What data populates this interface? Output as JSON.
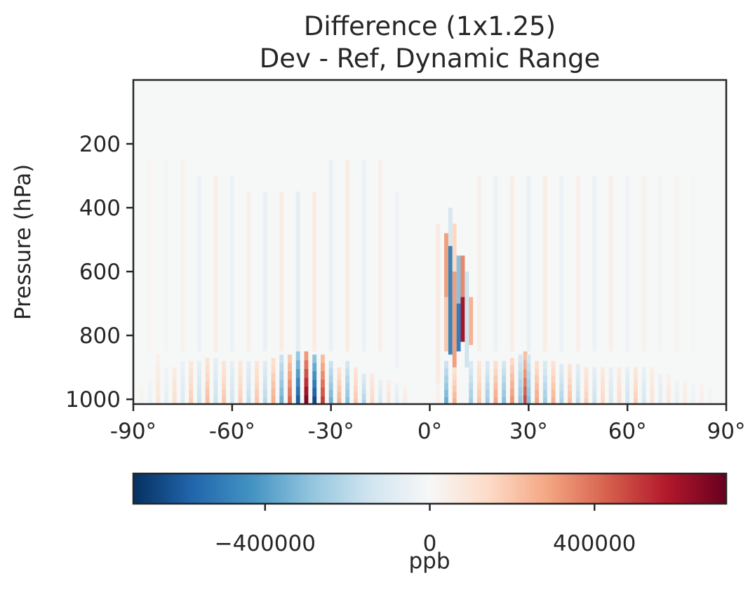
{
  "chart_data": {
    "type": "heatmap",
    "title": "Difference (1x1.25)",
    "subtitle": "Dev - Ref, Dynamic Range",
    "xlabel": "",
    "ylabel": "Pressure (hPa)",
    "xlim": [
      -90,
      90
    ],
    "ylim": [
      1015,
      0
    ],
    "x_ticks": [
      -90,
      -60,
      -30,
      0,
      30,
      60,
      90
    ],
    "x_tick_labels": [
      "-90°",
      "-60°",
      "-30°",
      "0°",
      "30°",
      "60°",
      "90°"
    ],
    "y_ticks": [
      200,
      400,
      600,
      800,
      1000
    ],
    "y_tick_labels": [
      "200",
      "400",
      "600",
      "800",
      "1000"
    ],
    "colormap": "RdBu_r",
    "colorbar": {
      "label": "ppb",
      "range": [
        -720000,
        720000
      ],
      "ticks": [
        -400000,
        0,
        400000
      ],
      "tick_labels": [
        "−400000",
        "0",
        "400000"
      ],
      "stops": [
        "#053061",
        "#2166ac",
        "#4393c3",
        "#92c5de",
        "#d1e5f0",
        "#f7f7f7",
        "#fddbc7",
        "#f4a582",
        "#d6604d",
        "#b2182b",
        "#67001f"
      ]
    },
    "column_width_deg": 1.25,
    "surface_columns": [
      {
        "lat": -87.5,
        "value": 30000,
        "top": 960
      },
      {
        "lat": -85.0,
        "value": -40000,
        "top": 940
      },
      {
        "lat": -82.5,
        "value": 80000,
        "top": 860
      },
      {
        "lat": -80.0,
        "value": -60000,
        "top": 900
      },
      {
        "lat": -77.5,
        "value": 120000,
        "top": 900
      },
      {
        "lat": -75.0,
        "value": -100000,
        "top": 880
      },
      {
        "lat": -72.5,
        "value": 180000,
        "top": 880
      },
      {
        "lat": -70.0,
        "value": -150000,
        "top": 880
      },
      {
        "lat": -67.5,
        "value": 220000,
        "top": 870
      },
      {
        "lat": -65.0,
        "value": -150000,
        "top": 870
      },
      {
        "lat": -62.5,
        "value": 200000,
        "top": 880
      },
      {
        "lat": -60.0,
        "value": -140000,
        "top": 880
      },
      {
        "lat": -57.5,
        "value": 180000,
        "top": 880
      },
      {
        "lat": -55.0,
        "value": -170000,
        "top": 880
      },
      {
        "lat": -52.5,
        "value": 200000,
        "top": 880
      },
      {
        "lat": -50.0,
        "value": -200000,
        "top": 880
      },
      {
        "lat": -47.5,
        "value": 260000,
        "top": 870
      },
      {
        "lat": -45.0,
        "value": -350000,
        "top": 860
      },
      {
        "lat": -42.5,
        "value": 420000,
        "top": 860
      },
      {
        "lat": -40.0,
        "value": -600000,
        "top": 850
      },
      {
        "lat": -37.5,
        "value": 680000,
        "top": 850
      },
      {
        "lat": -35.0,
        "value": -650000,
        "top": 860
      },
      {
        "lat": -32.5,
        "value": 500000,
        "top": 860
      },
      {
        "lat": -30.0,
        "value": -350000,
        "top": 880
      },
      {
        "lat": -27.5,
        "value": 250000,
        "top": 900
      },
      {
        "lat": -25.0,
        "value": -300000,
        "top": 880
      },
      {
        "lat": -22.5,
        "value": 200000,
        "top": 900
      },
      {
        "lat": -20.0,
        "value": -220000,
        "top": 920
      },
      {
        "lat": -17.5,
        "value": 150000,
        "top": 920
      },
      {
        "lat": -15.0,
        "value": -120000,
        "top": 940
      },
      {
        "lat": -12.5,
        "value": 100000,
        "top": 940
      },
      {
        "lat": -10.0,
        "value": -80000,
        "top": 950
      },
      {
        "lat": -7.5,
        "value": 60000,
        "top": 960
      },
      {
        "lat": 2.5,
        "value": 40000,
        "top": 900
      },
      {
        "lat": 5.0,
        "value": -350000,
        "top": 880
      },
      {
        "lat": 7.5,
        "value": 250000,
        "top": 900
      },
      {
        "lat": 12.5,
        "value": -250000,
        "top": 880
      },
      {
        "lat": 15.0,
        "value": 200000,
        "top": 880
      },
      {
        "lat": 17.5,
        "value": -250000,
        "top": 880
      },
      {
        "lat": 20.0,
        "value": 280000,
        "top": 880
      },
      {
        "lat": 22.5,
        "value": -300000,
        "top": 880
      },
      {
        "lat": 25.0,
        "value": 320000,
        "top": 870
      },
      {
        "lat": 27.5,
        "value": -280000,
        "top": 860
      },
      {
        "lat": 29.0,
        "value": 480000,
        "top": 850
      },
      {
        "lat": 30.0,
        "value": -300000,
        "top": 860
      },
      {
        "lat": 32.5,
        "value": 280000,
        "top": 880
      },
      {
        "lat": 35.0,
        "value": -250000,
        "top": 880
      },
      {
        "lat": 37.5,
        "value": 250000,
        "top": 880
      },
      {
        "lat": 40.0,
        "value": -220000,
        "top": 890
      },
      {
        "lat": 42.5,
        "value": 220000,
        "top": 890
      },
      {
        "lat": 45.0,
        "value": -180000,
        "top": 890
      },
      {
        "lat": 47.5,
        "value": 180000,
        "top": 900
      },
      {
        "lat": 50.0,
        "value": -150000,
        "top": 900
      },
      {
        "lat": 52.5,
        "value": 150000,
        "top": 900
      },
      {
        "lat": 55.0,
        "value": -120000,
        "top": 900
      },
      {
        "lat": 57.5,
        "value": 130000,
        "top": 900
      },
      {
        "lat": 60.0,
        "value": -140000,
        "top": 900
      },
      {
        "lat": 62.5,
        "value": 180000,
        "top": 900
      },
      {
        "lat": 65.0,
        "value": -120000,
        "top": 900
      },
      {
        "lat": 67.5,
        "value": 100000,
        "top": 900
      },
      {
        "lat": 70.0,
        "value": -80000,
        "top": 920
      },
      {
        "lat": 72.5,
        "value": 80000,
        "top": 920
      },
      {
        "lat": 75.0,
        "value": -60000,
        "top": 940
      },
      {
        "lat": 77.5,
        "value": 60000,
        "top": 940
      },
      {
        "lat": 80.0,
        "value": -40000,
        "top": 950
      },
      {
        "lat": 82.5,
        "value": 40000,
        "top": 950
      },
      {
        "lat": 85.0,
        "value": -30000,
        "top": 960
      }
    ],
    "streaks": [
      {
        "lat": -85.0,
        "p_top": 250,
        "p_bottom": 850,
        "value": 15000
      },
      {
        "lat": -80.0,
        "p_top": 250,
        "p_bottom": 850,
        "value": -20000
      },
      {
        "lat": -75.0,
        "p_top": 250,
        "p_bottom": 850,
        "value": 30000
      },
      {
        "lat": -70.0,
        "p_top": 300,
        "p_bottom": 850,
        "value": -40000
      },
      {
        "lat": -65.0,
        "p_top": 300,
        "p_bottom": 850,
        "value": 50000
      },
      {
        "lat": -60.0,
        "p_top": 300,
        "p_bottom": 850,
        "value": -40000
      },
      {
        "lat": -55.0,
        "p_top": 350,
        "p_bottom": 850,
        "value": 40000
      },
      {
        "lat": -50.0,
        "p_top": 350,
        "p_bottom": 850,
        "value": -50000
      },
      {
        "lat": -45.0,
        "p_top": 350,
        "p_bottom": 850,
        "value": 60000
      },
      {
        "lat": -40.0,
        "p_top": 350,
        "p_bottom": 850,
        "value": -70000
      },
      {
        "lat": -35.0,
        "p_top": 350,
        "p_bottom": 850,
        "value": 60000
      },
      {
        "lat": -30.0,
        "p_top": 250,
        "p_bottom": 850,
        "value": -50000
      },
      {
        "lat": -25.0,
        "p_top": 250,
        "p_bottom": 850,
        "value": 60000
      },
      {
        "lat": -20.0,
        "p_top": 250,
        "p_bottom": 850,
        "value": -40000
      },
      {
        "lat": -15.0,
        "p_top": 250,
        "p_bottom": 850,
        "value": 40000
      },
      {
        "lat": -10.0,
        "p_top": 350,
        "p_bottom": 900,
        "value": -30000
      },
      {
        "lat": 15.0,
        "p_top": 300,
        "p_bottom": 850,
        "value": 40000
      },
      {
        "lat": 20.0,
        "p_top": 300,
        "p_bottom": 850,
        "value": -40000
      },
      {
        "lat": 25.0,
        "p_top": 300,
        "p_bottom": 850,
        "value": 50000
      },
      {
        "lat": 30.0,
        "p_top": 300,
        "p_bottom": 850,
        "value": -50000
      },
      {
        "lat": 35.0,
        "p_top": 300,
        "p_bottom": 850,
        "value": 50000
      },
      {
        "lat": 40.0,
        "p_top": 300,
        "p_bottom": 850,
        "value": -40000
      },
      {
        "lat": 45.0,
        "p_top": 300,
        "p_bottom": 850,
        "value": 40000
      },
      {
        "lat": 50.0,
        "p_top": 300,
        "p_bottom": 850,
        "value": -40000
      },
      {
        "lat": 55.0,
        "p_top": 300,
        "p_bottom": 850,
        "value": 40000
      },
      {
        "lat": 60.0,
        "p_top": 300,
        "p_bottom": 850,
        "value": -30000
      },
      {
        "lat": 65.0,
        "p_top": 300,
        "p_bottom": 850,
        "value": 30000
      },
      {
        "lat": 70.0,
        "p_top": 300,
        "p_bottom": 850,
        "value": -20000
      },
      {
        "lat": 75.0,
        "p_top": 300,
        "p_bottom": 850,
        "value": 20000
      },
      {
        "lat": 80.0,
        "p_top": 300,
        "p_bottom": 850,
        "value": -15000
      }
    ],
    "tropical_feature": [
      {
        "lat": 2.5,
        "p_top": 450,
        "p_bottom": 950,
        "value": 60000
      },
      {
        "lat": 5.0,
        "p_top": 480,
        "p_bottom": 680,
        "value": 300000
      },
      {
        "lat": 5.0,
        "p_top": 680,
        "p_bottom": 850,
        "value": 200000
      },
      {
        "lat": 6.25,
        "p_top": 400,
        "p_bottom": 520,
        "value": -120000
      },
      {
        "lat": 6.25,
        "p_top": 520,
        "p_bottom": 860,
        "value": -480000
      },
      {
        "lat": 7.5,
        "p_top": 450,
        "p_bottom": 600,
        "value": 150000
      },
      {
        "lat": 7.5,
        "p_top": 600,
        "p_bottom": 900,
        "value": 300000
      },
      {
        "lat": 8.75,
        "p_top": 550,
        "p_bottom": 700,
        "value": -300000
      },
      {
        "lat": 8.75,
        "p_top": 700,
        "p_bottom": 850,
        "value": -500000
      },
      {
        "lat": 10.0,
        "p_top": 550,
        "p_bottom": 680,
        "value": 350000
      },
      {
        "lat": 10.0,
        "p_top": 680,
        "p_bottom": 820,
        "value": 600000
      },
      {
        "lat": 11.25,
        "p_top": 600,
        "p_bottom": 900,
        "value": -150000
      },
      {
        "lat": 12.5,
        "p_top": 680,
        "p_bottom": 830,
        "value": 250000
      }
    ]
  }
}
